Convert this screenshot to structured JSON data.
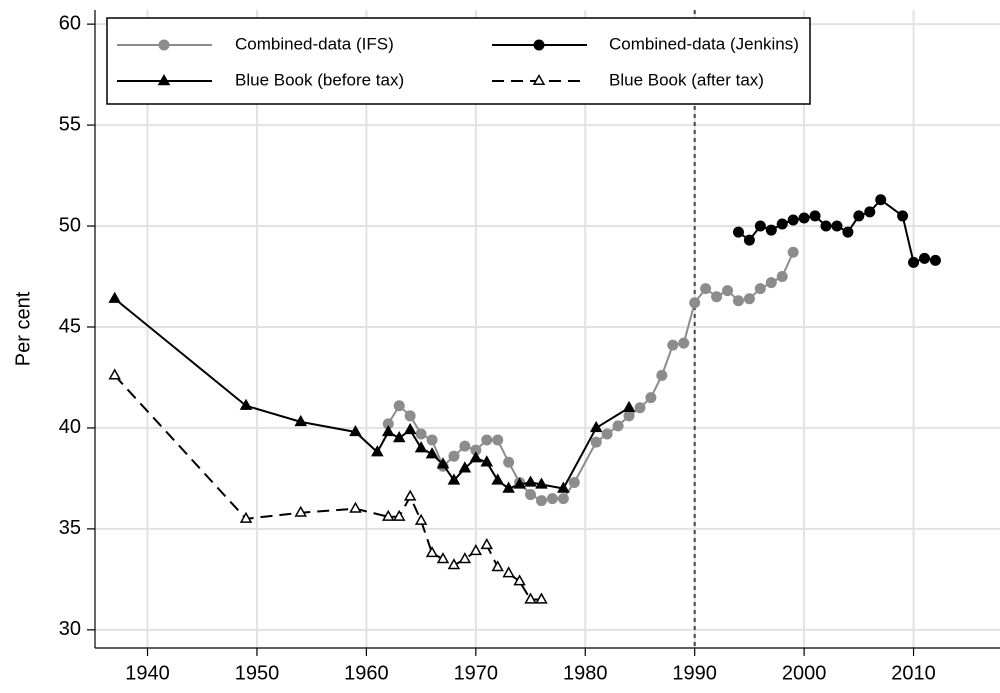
{
  "chart_data": {
    "type": "line",
    "ylabel": "Per cent",
    "xlim": [
      1935.2,
      2017.9
    ],
    "ylim": [
      29.1,
      60.7
    ],
    "xticks": [
      1940,
      1950,
      1960,
      1970,
      1980,
      1990,
      2000,
      2010
    ],
    "yticks": [
      30,
      35,
      40,
      45,
      50,
      55,
      60
    ],
    "grid": true,
    "legend": "top-left",
    "vline": 1990,
    "series": [
      {
        "name": "Combined-data (IFS)",
        "color": "#8c8c8c",
        "marker": "circle",
        "dash": false,
        "x": [
          1962,
          1963,
          1964,
          1965,
          1966,
          1967,
          1968,
          1969,
          1970,
          1971,
          1972,
          1973,
          1974,
          1975,
          1976,
          1977,
          1978,
          1979,
          1981,
          1982,
          1983,
          1984,
          1985,
          1986,
          1987,
          1988,
          1989,
          1990,
          1991,
          1992,
          1993,
          1994,
          1995,
          1996,
          1997,
          1998,
          1999
        ],
        "values": [
          40.2,
          41.1,
          40.6,
          39.7,
          39.4,
          38.1,
          38.6,
          39.1,
          38.9,
          39.4,
          39.4,
          38.3,
          37.3,
          36.7,
          36.4,
          36.5,
          36.5,
          37.3,
          39.3,
          39.7,
          40.1,
          40.6,
          41.0,
          41.5,
          42.6,
          44.1,
          44.2,
          46.2,
          46.9,
          46.5,
          46.8,
          46.3,
          46.4,
          46.9,
          47.2,
          47.5,
          48.7
        ]
      },
      {
        "name": "Combined-data (Jenkins)",
        "color": "#000000",
        "marker": "circle",
        "dash": false,
        "x": [
          1994,
          1995,
          1996,
          1997,
          1998,
          1999,
          2000,
          2001,
          2002,
          2003,
          2004,
          2005,
          2006,
          2007,
          2009,
          2010,
          2011,
          2012
        ],
        "values": [
          49.7,
          49.3,
          50.0,
          49.8,
          50.1,
          50.3,
          50.4,
          50.5,
          50.0,
          50.0,
          49.7,
          50.5,
          50.7,
          51.3,
          50.5,
          48.2,
          48.4,
          48.3
        ]
      },
      {
        "name": "Blue Book (before tax)",
        "color": "#000000",
        "marker": "triangle",
        "dash": false,
        "x": [
          1937,
          1949,
          1954,
          1959,
          1961,
          1962,
          1963,
          1964,
          1965,
          1966,
          1967,
          1968,
          1969,
          1970,
          1971,
          1972,
          1973,
          1974,
          1975,
          1976,
          1978,
          1981,
          1984
        ],
        "values": [
          46.4,
          41.1,
          40.3,
          39.8,
          38.8,
          39.8,
          39.5,
          39.9,
          39.0,
          38.7,
          38.2,
          37.4,
          38.0,
          38.5,
          38.3,
          37.4,
          37.0,
          37.2,
          37.3,
          37.2,
          37.0,
          40.0,
          41.0
        ]
      },
      {
        "name": "Blue Book (after tax)",
        "color": "#000000",
        "marker": "triangle-open",
        "dash": true,
        "x": [
          1937,
          1949,
          1954,
          1959,
          1962,
          1963,
          1964,
          1965,
          1966,
          1967,
          1968,
          1969,
          1970,
          1971,
          1972,
          1973,
          1974,
          1975,
          1976
        ],
        "values": [
          42.6,
          35.5,
          35.8,
          36.0,
          35.6,
          35.6,
          36.6,
          35.4,
          33.8,
          33.5,
          33.2,
          33.5,
          33.9,
          34.2,
          33.1,
          32.8,
          32.4,
          31.5,
          31.5
        ]
      }
    ]
  }
}
